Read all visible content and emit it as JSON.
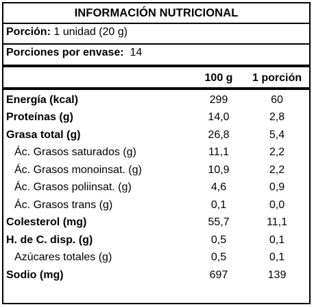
{
  "title": "INFORMACIÓN NUTRICIONAL",
  "serving": {
    "label": "Porción:",
    "value": "1 unidad (20 g)"
  },
  "servings_per_container": {
    "label": "Porciones por envase:",
    "value": "14"
  },
  "columns": {
    "per_100g": "100 g",
    "per_serving": "1 porción"
  },
  "rows": [
    {
      "name": "Energía (kcal)",
      "per_100g": "299",
      "per_serving": "60",
      "bold": true
    },
    {
      "name": "Proteínas (g)",
      "per_100g": "14,0",
      "per_serving": "2,8",
      "bold": true
    },
    {
      "name": "Grasa total (g)",
      "per_100g": "26,8",
      "per_serving": "5,4",
      "bold": true
    },
    {
      "name": "Ác. Grasos saturados (g)",
      "per_100g": "11,1",
      "per_serving": "2,2",
      "bold": false
    },
    {
      "name": "Ác. Grasos monoinsat. (g)",
      "per_100g": "10,9",
      "per_serving": "2,2",
      "bold": false
    },
    {
      "name": "Ác. Grasos poliinsat. (g)",
      "per_100g": "4,6",
      "per_serving": "0,9",
      "bold": false
    },
    {
      "name": "Ác. Grasos trans (g)",
      "per_100g": "0,1",
      "per_serving": "0,0",
      "bold": false
    },
    {
      "name": "Colesterol (mg)",
      "per_100g": "55,7",
      "per_serving": "11,1",
      "bold": true
    },
    {
      "name": "H. de C. disp. (g)",
      "per_100g": "0,5",
      "per_serving": "0,1",
      "bold": true
    },
    {
      "name": "Azúcares totales (g)",
      "per_100g": "0,5",
      "per_serving": "0,1",
      "bold": false
    },
    {
      "name": "Sodio (mg)",
      "per_100g": "697",
      "per_serving": "139",
      "bold": true
    }
  ]
}
